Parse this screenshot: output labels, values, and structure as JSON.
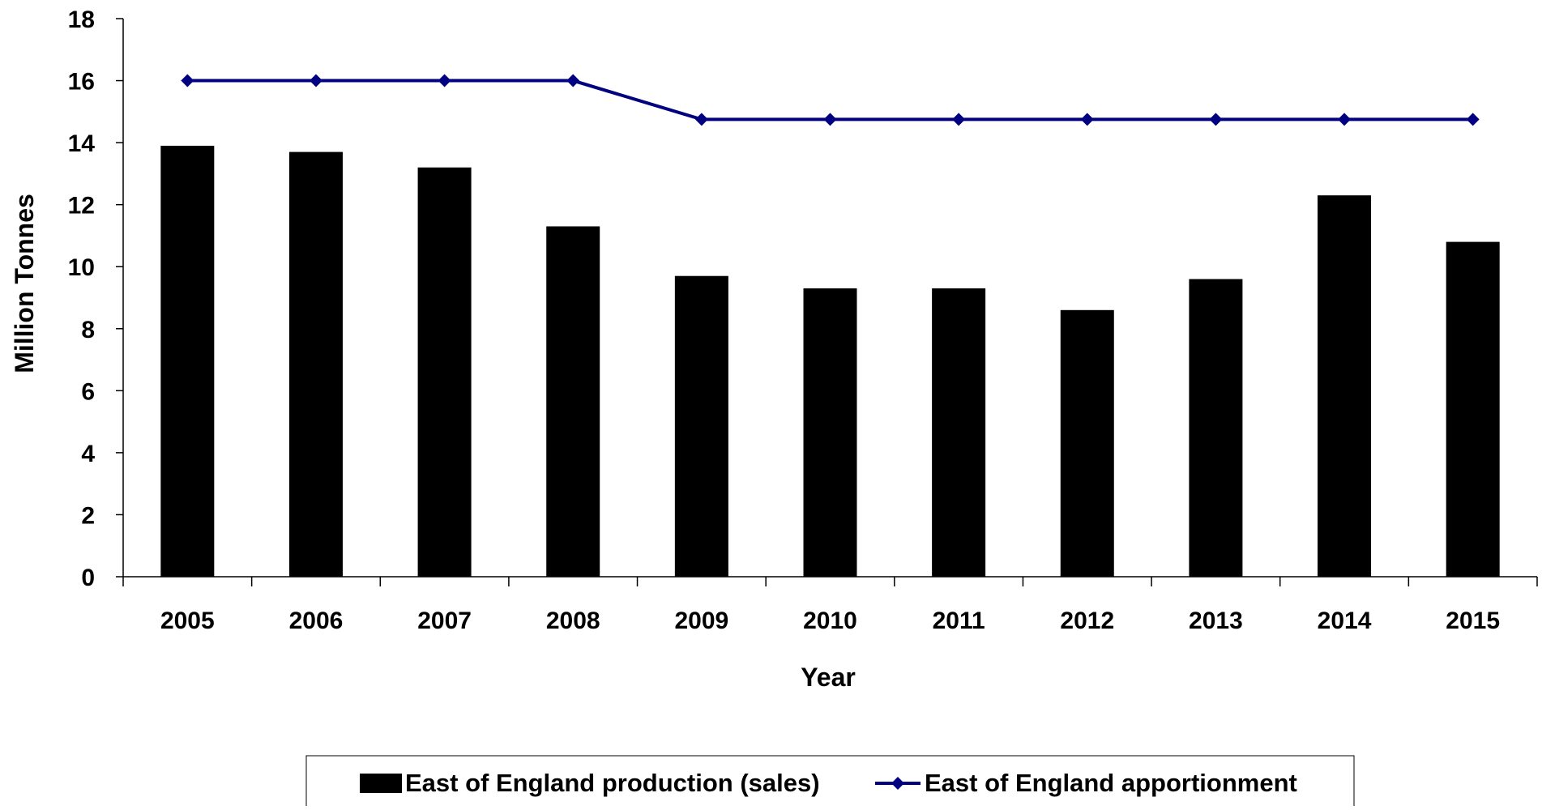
{
  "chart_data": {
    "type": "bar",
    "title": "",
    "xlabel": "Year",
    "ylabel": "Million Tonnes",
    "categories": [
      "2005",
      "2006",
      "2007",
      "2008",
      "2009",
      "2010",
      "2011",
      "2012",
      "2013",
      "2014",
      "2015"
    ],
    "series": [
      {
        "name": "East of England production (sales)",
        "type": "bar",
        "color": "#000000",
        "values": [
          13.9,
          13.7,
          13.2,
          11.3,
          9.7,
          9.3,
          9.3,
          8.6,
          9.6,
          12.3,
          10.8
        ]
      },
      {
        "name": "East of England apportionment",
        "type": "line",
        "marker": "diamond",
        "color": "#000080",
        "values": [
          16,
          16,
          16,
          16,
          14.75,
          14.75,
          14.75,
          14.75,
          14.75,
          14.75,
          14.75
        ]
      }
    ],
    "ylim": [
      0,
      18
    ],
    "yticks": [
      "0",
      "2",
      "4",
      "6",
      "8",
      "10",
      "12",
      "14",
      "16",
      "18"
    ],
    "grid": false,
    "legend_position": "bottom"
  }
}
